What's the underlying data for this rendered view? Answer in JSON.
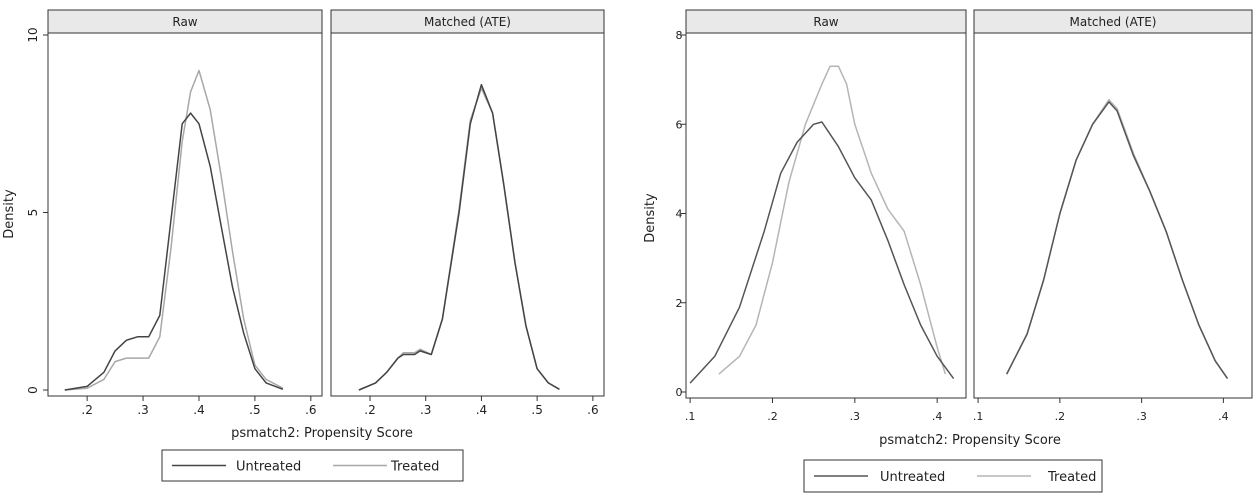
{
  "chart_data": [
    {
      "type": "line",
      "ylabel": "Density",
      "xlabel": "psmatch2: Propensity Score",
      "xlim": [
        0.13,
        0.62
      ],
      "ylim": [
        0,
        10
      ],
      "xticks": [
        ".2",
        ".3",
        ".4",
        ".5",
        ".6"
      ],
      "yticks": [
        "0",
        "5",
        "10"
      ],
      "legend": [
        "Untreated",
        "Treated"
      ],
      "legend_position": "bottom",
      "colors": {
        "untreated": "#444444",
        "treated": "#a8a8a8"
      },
      "panels": [
        {
          "title": "Raw",
          "series": [
            {
              "name": "Untreated",
              "x": [
                0.16,
                0.2,
                0.23,
                0.25,
                0.27,
                0.29,
                0.31,
                0.33,
                0.35,
                0.37,
                0.385,
                0.4,
                0.42,
                0.44,
                0.46,
                0.48,
                0.5,
                0.52,
                0.55
              ],
              "y": [
                0,
                0.1,
                0.5,
                1.1,
                1.4,
                1.5,
                1.5,
                2.1,
                4.8,
                7.5,
                7.8,
                7.5,
                6.3,
                4.6,
                2.9,
                1.6,
                0.6,
                0.2,
                0.02
              ]
            },
            {
              "name": "Treated",
              "x": [
                0.16,
                0.2,
                0.23,
                0.25,
                0.27,
                0.29,
                0.31,
                0.33,
                0.35,
                0.37,
                0.385,
                0.4,
                0.42,
                0.44,
                0.46,
                0.48,
                0.5,
                0.52,
                0.55
              ],
              "y": [
                0,
                0.05,
                0.3,
                0.8,
                0.9,
                0.9,
                0.9,
                1.5,
                4.0,
                7.0,
                8.4,
                9.0,
                7.9,
                6.0,
                3.9,
                2.0,
                0.7,
                0.3,
                0.05
              ]
            }
          ]
        },
        {
          "title": "Matched (ATE)",
          "series": [
            {
              "name": "Untreated",
              "x": [
                0.18,
                0.21,
                0.23,
                0.25,
                0.26,
                0.28,
                0.29,
                0.31,
                0.33,
                0.36,
                0.38,
                0.4,
                0.42,
                0.44,
                0.46,
                0.48,
                0.5,
                0.52,
                0.54
              ],
              "y": [
                0,
                0.2,
                0.5,
                0.9,
                1.0,
                1.0,
                1.1,
                1.0,
                2.0,
                5.0,
                7.5,
                8.6,
                7.8,
                5.8,
                3.6,
                1.8,
                0.6,
                0.2,
                0.02
              ]
            },
            {
              "name": "Treated",
              "x": [
                0.18,
                0.21,
                0.23,
                0.25,
                0.26,
                0.28,
                0.29,
                0.31,
                0.33,
                0.36,
                0.38,
                0.4,
                0.42,
                0.44,
                0.46,
                0.48,
                0.5,
                0.52,
                0.54
              ],
              "y": [
                0,
                0.2,
                0.5,
                0.9,
                1.05,
                1.05,
                1.15,
                1.0,
                2.0,
                5.1,
                7.6,
                8.5,
                7.8,
                5.8,
                3.6,
                1.8,
                0.6,
                0.2,
                0.02
              ]
            }
          ]
        }
      ]
    },
    {
      "type": "line",
      "ylabel": "Density",
      "xlabel": "psmatch2: Propensity Score",
      "xlim": [
        0.095,
        0.435
      ],
      "ylim": [
        0,
        8
      ],
      "xticks": [
        ".1",
        ".2",
        ".3",
        ".4"
      ],
      "yticks": [
        "0",
        "2",
        "4",
        "6",
        "8"
      ],
      "legend": [
        "Untreated",
        "Treated"
      ],
      "legend_position": "bottom",
      "colors": {
        "untreated": "#555555",
        "treated": "#b5b5b5"
      },
      "panels": [
        {
          "title": "Raw",
          "series": [
            {
              "name": "Untreated",
              "x": [
                0.1,
                0.13,
                0.16,
                0.19,
                0.21,
                0.23,
                0.25,
                0.26,
                0.28,
                0.3,
                0.32,
                0.34,
                0.36,
                0.38,
                0.4,
                0.42
              ],
              "y": [
                0.2,
                0.8,
                1.9,
                3.6,
                4.9,
                5.6,
                6.0,
                6.05,
                5.5,
                4.8,
                4.3,
                3.4,
                2.4,
                1.5,
                0.8,
                0.3
              ]
            },
            {
              "name": "Treated",
              "x": [
                0.135,
                0.16,
                0.18,
                0.2,
                0.22,
                0.24,
                0.26,
                0.27,
                0.28,
                0.29,
                0.3,
                0.32,
                0.34,
                0.36,
                0.38,
                0.4,
                0.41
              ],
              "y": [
                0.4,
                0.8,
                1.5,
                2.9,
                4.7,
                6.0,
                6.9,
                7.3,
                7.3,
                6.9,
                6.0,
                4.9,
                4.1,
                3.6,
                2.4,
                1.0,
                0.4
              ]
            }
          ]
        },
        {
          "title": "Matched (ATE)",
          "series": [
            {
              "name": "Untreated",
              "x": [
                0.135,
                0.16,
                0.18,
                0.2,
                0.22,
                0.24,
                0.26,
                0.27,
                0.29,
                0.31,
                0.33,
                0.35,
                0.37,
                0.39,
                0.405
              ],
              "y": [
                0.4,
                1.3,
                2.5,
                4.0,
                5.2,
                6.0,
                6.5,
                6.3,
                5.3,
                4.5,
                3.6,
                2.5,
                1.5,
                0.7,
                0.3
              ]
            },
            {
              "name": "Treated",
              "x": [
                0.135,
                0.16,
                0.18,
                0.2,
                0.22,
                0.24,
                0.26,
                0.27,
                0.29,
                0.31,
                0.33,
                0.35,
                0.37,
                0.39,
                0.405
              ],
              "y": [
                0.4,
                1.3,
                2.5,
                4.0,
                5.2,
                6.0,
                6.55,
                6.35,
                5.35,
                4.5,
                3.6,
                2.5,
                1.5,
                0.7,
                0.3
              ]
            }
          ]
        }
      ]
    }
  ]
}
